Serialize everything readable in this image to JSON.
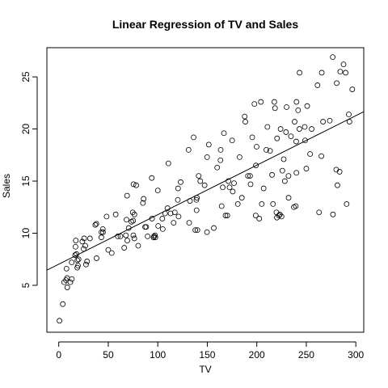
{
  "chart_data": {
    "type": "scatter",
    "title": "Linear Regression of TV and Sales",
    "xlabel": "TV",
    "ylabel": "Sales",
    "xlim": [
      -12,
      308
    ],
    "ylim": [
      0.5,
      27.8
    ],
    "xticks": [
      0,
      50,
      100,
      150,
      200,
      250,
      300
    ],
    "yticks": [
      5,
      10,
      15,
      20,
      25
    ],
    "regression_line": {
      "intercept": 7.03,
      "slope": 0.0475
    },
    "points": [
      [
        0.7,
        1.6
      ],
      [
        4.1,
        3.2
      ],
      [
        5.4,
        5.3
      ],
      [
        7.3,
        5.5
      ],
      [
        8.4,
        5.7
      ],
      [
        8.6,
        4.8
      ],
      [
        7.8,
        6.6
      ],
      [
        11.7,
        5.3
      ],
      [
        13.2,
        5.6
      ],
      [
        13.1,
        7.2
      ],
      [
        16.9,
        8.7
      ],
      [
        17.2,
        9.3
      ],
      [
        17.9,
        8.0
      ],
      [
        18.7,
        6.7
      ],
      [
        19.4,
        6.9
      ],
      [
        18.8,
        7.4
      ],
      [
        23.8,
        9.2
      ],
      [
        25.1,
        8.5
      ],
      [
        25.6,
        9.5
      ],
      [
        26.8,
        8.8
      ],
      [
        27.5,
        7.0
      ],
      [
        28.6,
        7.3
      ],
      [
        31.5,
        9.5
      ],
      [
        36.9,
        10.8
      ],
      [
        38.0,
        10.9
      ],
      [
        38.2,
        7.6
      ],
      [
        43.0,
        9.6
      ],
      [
        43.1,
        10.1
      ],
      [
        44.5,
        10.4
      ],
      [
        48.3,
        11.6
      ],
      [
        50.0,
        8.4
      ],
      [
        53.5,
        8.1
      ],
      [
        57.5,
        11.8
      ],
      [
        59.6,
        9.7
      ],
      [
        62.3,
        9.7
      ],
      [
        66.1,
        8.6
      ],
      [
        67.8,
        9.8
      ],
      [
        68.4,
        11.3
      ],
      [
        69.0,
        13.6
      ],
      [
        69.2,
        9.3
      ],
      [
        70.6,
        10.5
      ],
      [
        73.4,
        11.1
      ],
      [
        74.7,
        12.0
      ],
      [
        75.1,
        11.2
      ],
      [
        75.3,
        9.8
      ],
      [
        75.5,
        14.7
      ],
      [
        76.3,
        9.5
      ],
      [
        76.4,
        11.8
      ],
      [
        78.2,
        14.6
      ],
      [
        80.2,
        8.8
      ],
      [
        85.7,
        13.3
      ],
      [
        87.2,
        10.6
      ],
      [
        88.3,
        10.6
      ],
      [
        89.7,
        9.7
      ],
      [
        93.9,
        15.3
      ],
      [
        94.2,
        11.4
      ],
      [
        95.7,
        9.6
      ],
      [
        96.2,
        9.7
      ],
      [
        97.2,
        9.8
      ],
      [
        97.5,
        9.6
      ],
      [
        100.4,
        10.7
      ],
      [
        104.6,
        11.4
      ],
      [
        107.4,
        11.9
      ],
      [
        109.8,
        12.4
      ],
      [
        110.7,
        16.7
      ],
      [
        112.9,
        11.9
      ],
      [
        116.0,
        11.0
      ],
      [
        117.2,
        12.0
      ],
      [
        120.2,
        13.2
      ],
      [
        121.0,
        11.6
      ],
      [
        123.1,
        14.9
      ],
      [
        131.1,
        18.0
      ],
      [
        131.7,
        11.0
      ],
      [
        132.5,
        13.1
      ],
      [
        136.2,
        19.2
      ],
      [
        137.9,
        10.3
      ],
      [
        139.2,
        12.2
      ],
      [
        139.5,
        13.4
      ],
      [
        141.3,
        15.5
      ],
      [
        142.9,
        15.0
      ],
      [
        147.3,
        14.6
      ],
      [
        149.7,
        10.1
      ],
      [
        149.8,
        17.3
      ],
      [
        151.5,
        18.5
      ],
      [
        156.6,
        10.5
      ],
      [
        163.3,
        17.0
      ],
      [
        163.5,
        18.0
      ],
      [
        164.5,
        12.6
      ],
      [
        165.6,
        14.4
      ],
      [
        166.8,
        19.6
      ],
      [
        168.4,
        11.7
      ],
      [
        170.2,
        11.7
      ],
      [
        171.3,
        15.0
      ],
      [
        172.5,
        14.4
      ],
      [
        175.1,
        18.9
      ],
      [
        175.7,
        14.0
      ],
      [
        177.0,
        14.8
      ],
      [
        180.8,
        12.8
      ],
      [
        182.6,
        17.3
      ],
      [
        184.9,
        13.4
      ],
      [
        187.8,
        21.2
      ],
      [
        188.4,
        20.7
      ],
      [
        191.1,
        15.5
      ],
      [
        193.2,
        15.5
      ],
      [
        193.7,
        14.7
      ],
      [
        195.4,
        19.2
      ],
      [
        197.6,
        22.4
      ],
      [
        198.9,
        11.7
      ],
      [
        199.1,
        16.5
      ],
      [
        199.8,
        18.3
      ],
      [
        202.5,
        11.4
      ],
      [
        204.1,
        22.6
      ],
      [
        205.0,
        12.8
      ],
      [
        206.9,
        14.3
      ],
      [
        209.6,
        18.0
      ],
      [
        210.7,
        20.2
      ],
      [
        213.4,
        17.9
      ],
      [
        215.4,
        15.6
      ],
      [
        216.4,
        12.8
      ],
      [
        217.7,
        22.6
      ],
      [
        218.4,
        22.0
      ],
      [
        219.8,
        12.0
      ],
      [
        220.3,
        11.5
      ],
      [
        220.5,
        19.1
      ],
      [
        222.4,
        11.7
      ],
      [
        223.3,
        11.8
      ],
      [
        224.0,
        20.0
      ],
      [
        225.8,
        16.0
      ],
      [
        227.2,
        17.1
      ],
      [
        228.3,
        15.0
      ],
      [
        229.5,
        19.7
      ],
      [
        230.1,
        22.1
      ],
      [
        232.1,
        13.4
      ],
      [
        234.5,
        19.3
      ],
      [
        237.4,
        12.5
      ],
      [
        238.2,
        20.7
      ],
      [
        239.3,
        12.6
      ],
      [
        239.8,
        18.8
      ],
      [
        240.1,
        22.6
      ],
      [
        241.7,
        21.8
      ],
      [
        243.2,
        25.4
      ],
      [
        248.4,
        20.2
      ],
      [
        248.8,
        18.9
      ],
      [
        250.9,
        22.2
      ],
      [
        253.8,
        17.6
      ],
      [
        255.4,
        20.0
      ],
      [
        261.3,
        24.2
      ],
      [
        262.9,
        12.0
      ],
      [
        265.2,
        17.4
      ],
      [
        265.6,
        25.4
      ],
      [
        266.9,
        20.7
      ],
      [
        273.7,
        20.8
      ],
      [
        276.7,
        26.9
      ],
      [
        276.9,
        11.8
      ],
      [
        280.2,
        16.1
      ],
      [
        280.7,
        24.4
      ],
      [
        281.4,
        14.6
      ],
      [
        283.6,
        15.9
      ],
      [
        284.3,
        25.5
      ],
      [
        287.6,
        26.2
      ],
      [
        289.7,
        25.4
      ],
      [
        290.7,
        12.8
      ],
      [
        292.9,
        21.4
      ],
      [
        293.6,
        20.7
      ],
      [
        296.4,
        23.8
      ],
      [
        120.5,
        14.3
      ],
      [
        100.0,
        14.1
      ],
      [
        85.0,
        12.9
      ],
      [
        105.0,
        10.4
      ],
      [
        139.0,
        13.2
      ],
      [
        140.0,
        10.3
      ],
      [
        160.0,
        16.3
      ],
      [
        225.0,
        11.6
      ],
      [
        232.0,
        15.5
      ],
      [
        240.0,
        15.8
      ],
      [
        243.0,
        20.0
      ],
      [
        250.0,
        16.2
      ],
      [
        16.5,
        7.9
      ],
      [
        20.0,
        7.5
      ],
      [
        44.7,
        10.1
      ]
    ]
  }
}
